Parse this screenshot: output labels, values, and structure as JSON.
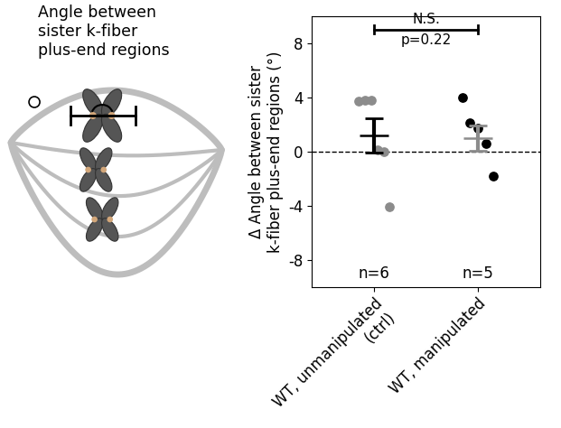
{
  "diagram": {
    "label": "Angle between\nsister k-fiber\nplus-end regions"
  },
  "chart_data": {
    "type": "strip",
    "categories": [
      "WT, unmanipulated\n(ctrl)",
      "WT, manipulated"
    ],
    "values": [
      [
        3.7,
        3.8,
        3.8,
        0.1,
        0.0,
        -4.1
      ],
      [
        4.0,
        2.1,
        1.7,
        0.6,
        -1.8
      ]
    ],
    "means": [
      1.2,
      1.0
    ],
    "errors": [
      1.25,
      0.95
    ],
    "colors": [
      "#8c8c8c",
      "#000000"
    ],
    "y_label": "Δ Angle between sister\nk-fiber plus-end regions (°)",
    "ylim": [
      -10,
      10
    ],
    "yticks": [
      -8,
      -4,
      0,
      4,
      8
    ],
    "hline": 0,
    "significance": "N.S.",
    "p_value": "p=0.22",
    "n_labels": [
      "n=6",
      "n=5"
    ]
  }
}
